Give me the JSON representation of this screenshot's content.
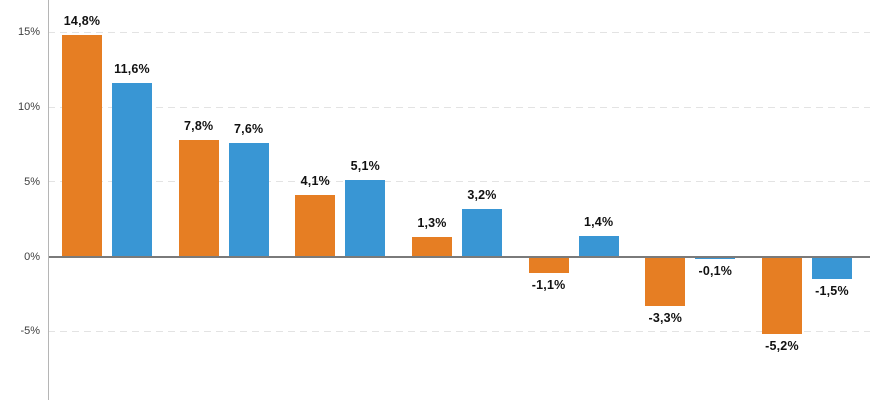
{
  "chart_data": {
    "type": "bar",
    "title": "",
    "groups": 7,
    "series": [
      {
        "name": "series-1-orange",
        "color": "#E67E23",
        "values": [
          14.8,
          7.8,
          4.1,
          1.3,
          -1.1,
          -3.3,
          -5.2
        ],
        "labels": [
          "14,8%",
          "7,8%",
          "4,1%",
          "1,3%",
          "-1,1%",
          "-3,3%",
          "-5,2%"
        ]
      },
      {
        "name": "series-2-blue",
        "color": "#3996D4",
        "values": [
          11.6,
          7.6,
          5.1,
          3.2,
          1.4,
          -0.1,
          -1.5
        ],
        "labels": [
          "11,6%",
          "7,6%",
          "5,1%",
          "3,2%",
          "1,4%",
          "-0,1%",
          "-1,5%"
        ]
      }
    ],
    "y_axis": {
      "ticks": [
        {
          "value": 15,
          "label": "15%"
        },
        {
          "value": 10,
          "label": "10%"
        },
        {
          "value": 5,
          "label": "5%"
        },
        {
          "value": 0,
          "label": "0%"
        },
        {
          "value": -5,
          "label": "-5%"
        }
      ],
      "visible_range": [
        -9.6,
        17.2
      ]
    },
    "x_axis": {
      "category_labels_visible": false
    },
    "grid": {
      "horizontal": true,
      "style": "dashed"
    },
    "legend": "none",
    "decimal_separator": ","
  },
  "colors": {
    "background": "#FFFFFF",
    "series_1": "#E67E23",
    "series_2": "#3996D4",
    "zero_line": "#7A7A7A",
    "y_axis_line": "#B5B5B5",
    "gridline": "#E3E3E3",
    "value_label_text": "#111111",
    "tick_label_text": "#3F3F3F"
  }
}
